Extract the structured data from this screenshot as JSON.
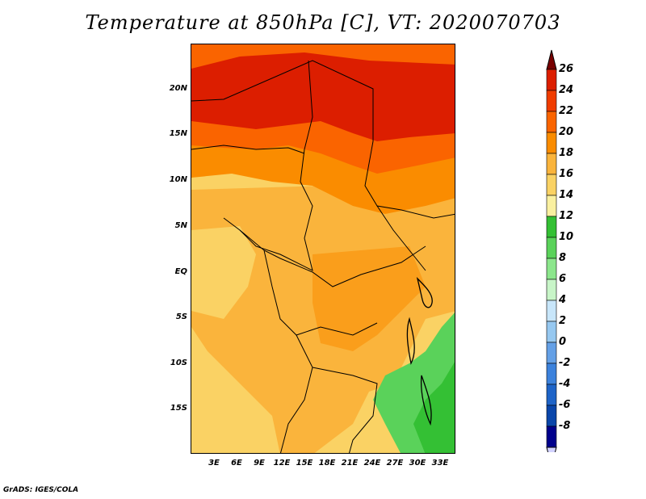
{
  "title": "Temperature at 850hPa [C], VT: 2020070703",
  "credit": "GrADS: IGES/COLA",
  "map": {
    "lat_labels": [
      "20N",
      "15N",
      "10N",
      "5N",
      "EQ",
      "5S",
      "10S",
      "15S"
    ],
    "lon_labels": [
      "3E",
      "6E",
      "9E",
      "12E",
      "15E",
      "18E",
      "21E",
      "24E",
      "27E",
      "30E",
      "33E"
    ]
  },
  "colorbar": {
    "labels": [
      "26",
      "24",
      "22",
      "20",
      "18",
      "16",
      "14",
      "12",
      "10",
      "8",
      "6",
      "4",
      "2",
      "0",
      "-2",
      "-4",
      "-6",
      "-8"
    ],
    "colors": [
      "#780000",
      "#dc1e00",
      "#f03c00",
      "#fa6400",
      "#fa8c00",
      "#fab43c",
      "#fad264",
      "#faf0a0",
      "#34c034",
      "#5ad25a",
      "#8ce68c",
      "#c8f5c8",
      "#c8e6fa",
      "#96c8f0",
      "#64a0e6",
      "#3c82dc",
      "#1e64c8",
      "#0a46aa",
      "#00008c",
      "#d2d2ff"
    ]
  }
}
